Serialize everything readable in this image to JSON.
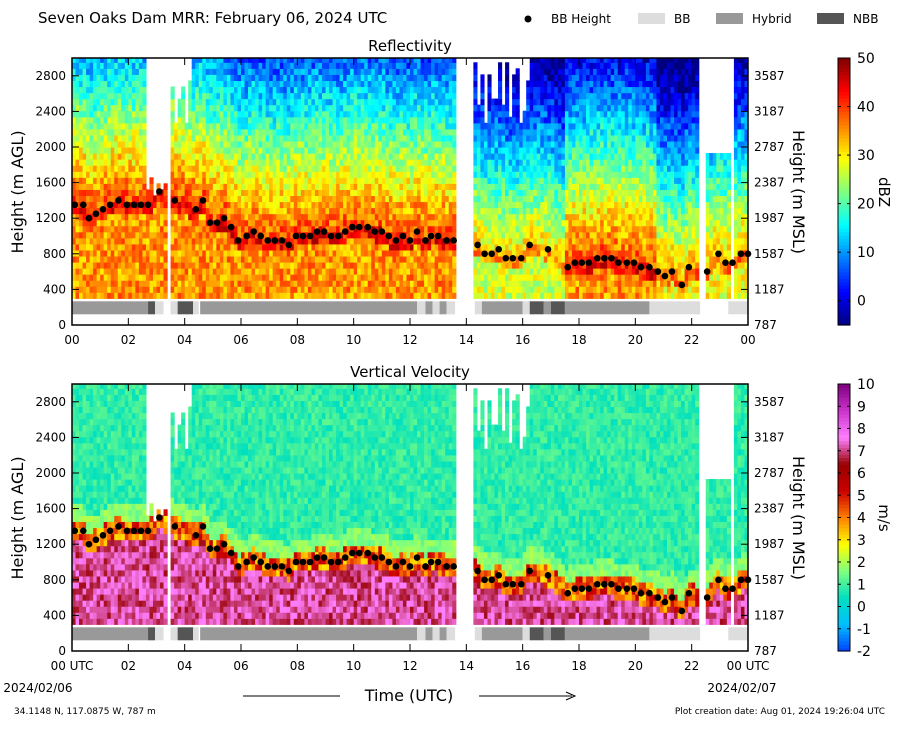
{
  "header": {
    "title": "Seven Oaks Dam MRR:  February 06, 2024 UTC",
    "legend": [
      {
        "label": "BB Height",
        "kind": "dot",
        "color": "#000000"
      },
      {
        "label": "BB",
        "kind": "box",
        "color": "#dddddd"
      },
      {
        "label": "Hybrid",
        "kind": "box",
        "color": "#999999"
      },
      {
        "label": "NBB",
        "kind": "box",
        "color": "#555555"
      }
    ]
  },
  "footer": {
    "location": "34.1148 N, 117.0875 W, 787 m",
    "creation": "Plot creation date: Aug 01, 2024 19:26:04 UTC",
    "xlabel": "Time (UTC)",
    "start_date": "2024/02/06",
    "end_date": "2024/02/07"
  },
  "chart_data": [
    {
      "type": "heatmap",
      "title": "Reflectivity",
      "ylabel": "Height (m AGL)",
      "y2label": "Height (m MSL)",
      "colorbar_label": "dBZ",
      "colorbar_range": [
        -5,
        50
      ],
      "colorbar_ticks": [
        "0",
        "10",
        "20",
        "30",
        "40",
        "50"
      ],
      "colors": [
        "#00007f",
        "#0000ff",
        "#007fff",
        "#00ffff",
        "#7fff7f",
        "#ffff00",
        "#ff7f00",
        "#ff0000",
        "#7f0000"
      ],
      "xlim": [
        0,
        24
      ],
      "ylim": [
        0,
        3000
      ],
      "x_ticklabels": [
        "00",
        "02",
        "04",
        "06",
        "08",
        "10",
        "12",
        "14",
        "16",
        "18",
        "20",
        "22",
        "00"
      ],
      "y_ticks": [
        0,
        400,
        800,
        1200,
        1600,
        2000,
        2400,
        2800
      ],
      "y2_ticks": [
        "787",
        "1187",
        "1587",
        "1987",
        "2387",
        "2787",
        "3187",
        "3587"
      ]
    },
    {
      "type": "heatmap",
      "title": "Vertical Velocity",
      "ylabel": "Height (m AGL)",
      "y2label": "Height (m MSL)",
      "colorbar_label": "m/s",
      "colorbar_range": [
        -2,
        10
      ],
      "colorbar_ticks": [
        "-2",
        "-1",
        "0",
        "1",
        "2",
        "3",
        "4",
        "5",
        "6",
        "7",
        "8",
        "9",
        "10"
      ],
      "colors": [
        "#0040ff",
        "#00bfff",
        "#00e0c0",
        "#7fff7f",
        "#ffff00",
        "#ff8000",
        "#cc0000",
        "#990000",
        "#ff80ff",
        "#cc33cc",
        "#800080"
      ],
      "xlim": [
        0,
        24
      ],
      "ylim": [
        0,
        3000
      ],
      "x_ticklabels": [
        "00 UTC",
        "02",
        "04",
        "06",
        "08",
        "10",
        "12",
        "14",
        "16",
        "18",
        "20",
        "22",
        "00 UTC"
      ],
      "y_ticks": [
        0,
        400,
        800,
        1200,
        1600,
        2000,
        2400,
        2800
      ],
      "y2_ticks": [
        "787",
        "1187",
        "1587",
        "1987",
        "2387",
        "2787",
        "3187",
        "3587"
      ]
    }
  ],
  "bb_height": {
    "name": "BB Height",
    "x": [
      0.1,
      0.4,
      0.6,
      0.85,
      1.1,
      1.35,
      1.65,
      1.95,
      2.2,
      2.45,
      2.7,
      3.1,
      3.65,
      4.4,
      4.65,
      4.9,
      5.15,
      5.4,
      5.65,
      5.9,
      6.2,
      6.45,
      6.7,
      6.95,
      7.2,
      7.45,
      7.7,
      7.95,
      8.2,
      8.45,
      8.7,
      8.95,
      9.2,
      9.45,
      9.7,
      9.95,
      10.2,
      10.5,
      10.75,
      11.0,
      11.25,
      11.5,
      11.75,
      12.0,
      12.25,
      12.55,
      12.75,
      13.0,
      13.3,
      13.55,
      14.4,
      14.65,
      14.9,
      15.15,
      15.4,
      15.65,
      15.95,
      16.25,
      16.9,
      17.6,
      17.85,
      18.1,
      18.35,
      18.65,
      18.9,
      19.15,
      19.4,
      19.7,
      19.95,
      20.2,
      20.5,
      20.8,
      21.05,
      21.3,
      21.65,
      21.9,
      22.55,
      22.95,
      23.2,
      23.45,
      23.75,
      24.0
    ],
    "y": [
      1350,
      1350,
      1200,
      1250,
      1300,
      1350,
      1400,
      1350,
      1350,
      1350,
      1350,
      1500,
      1400,
      1300,
      1400,
      1150,
      1150,
      1200,
      1100,
      950,
      1000,
      1050,
      1000,
      950,
      950,
      950,
      900,
      1000,
      1000,
      1000,
      1050,
      1050,
      1000,
      1000,
      1050,
      1100,
      1100,
      1100,
      1050,
      1050,
      1000,
      950,
      1000,
      950,
      1050,
      950,
      1000,
      1000,
      950,
      950,
      900,
      800,
      800,
      850,
      750,
      750,
      750,
      900,
      850,
      650,
      700,
      700,
      700,
      750,
      750,
      750,
      700,
      700,
      700,
      650,
      650,
      600,
      550,
      600,
      450,
      650,
      600,
      800,
      700,
      700,
      800,
      800
    ]
  },
  "bb_type_strip": {
    "segments": [
      {
        "start": 0.0,
        "end": 2.7,
        "type": "Hybrid"
      },
      {
        "start": 2.7,
        "end": 2.95,
        "type": "NBB"
      },
      {
        "start": 2.95,
        "end": 3.25,
        "type": "BB"
      },
      {
        "start": 3.5,
        "end": 3.75,
        "type": "BB"
      },
      {
        "start": 3.75,
        "end": 4.3,
        "type": "NBB"
      },
      {
        "start": 4.3,
        "end": 4.5,
        "type": "BB"
      },
      {
        "start": 4.55,
        "end": 12.25,
        "type": "Hybrid"
      },
      {
        "start": 12.25,
        "end": 12.55,
        "type": "BB"
      },
      {
        "start": 12.55,
        "end": 12.8,
        "type": "Hybrid"
      },
      {
        "start": 12.8,
        "end": 13.05,
        "type": "BB"
      },
      {
        "start": 13.05,
        "end": 13.3,
        "type": "Hybrid"
      },
      {
        "start": 13.3,
        "end": 13.6,
        "type": "BB"
      },
      {
        "start": 14.3,
        "end": 14.55,
        "type": "BB"
      },
      {
        "start": 14.55,
        "end": 16.0,
        "type": "Hybrid"
      },
      {
        "start": 16.0,
        "end": 16.25,
        "type": "BB"
      },
      {
        "start": 16.25,
        "end": 16.75,
        "type": "NBB"
      },
      {
        "start": 16.75,
        "end": 17.0,
        "type": "Hybrid"
      },
      {
        "start": 17.0,
        "end": 17.5,
        "type": "NBB"
      },
      {
        "start": 17.5,
        "end": 20.5,
        "type": "Hybrid"
      },
      {
        "start": 20.5,
        "end": 22.3,
        "type": "BB"
      },
      {
        "start": 23.3,
        "end": 24.0,
        "type": "BB"
      }
    ]
  }
}
